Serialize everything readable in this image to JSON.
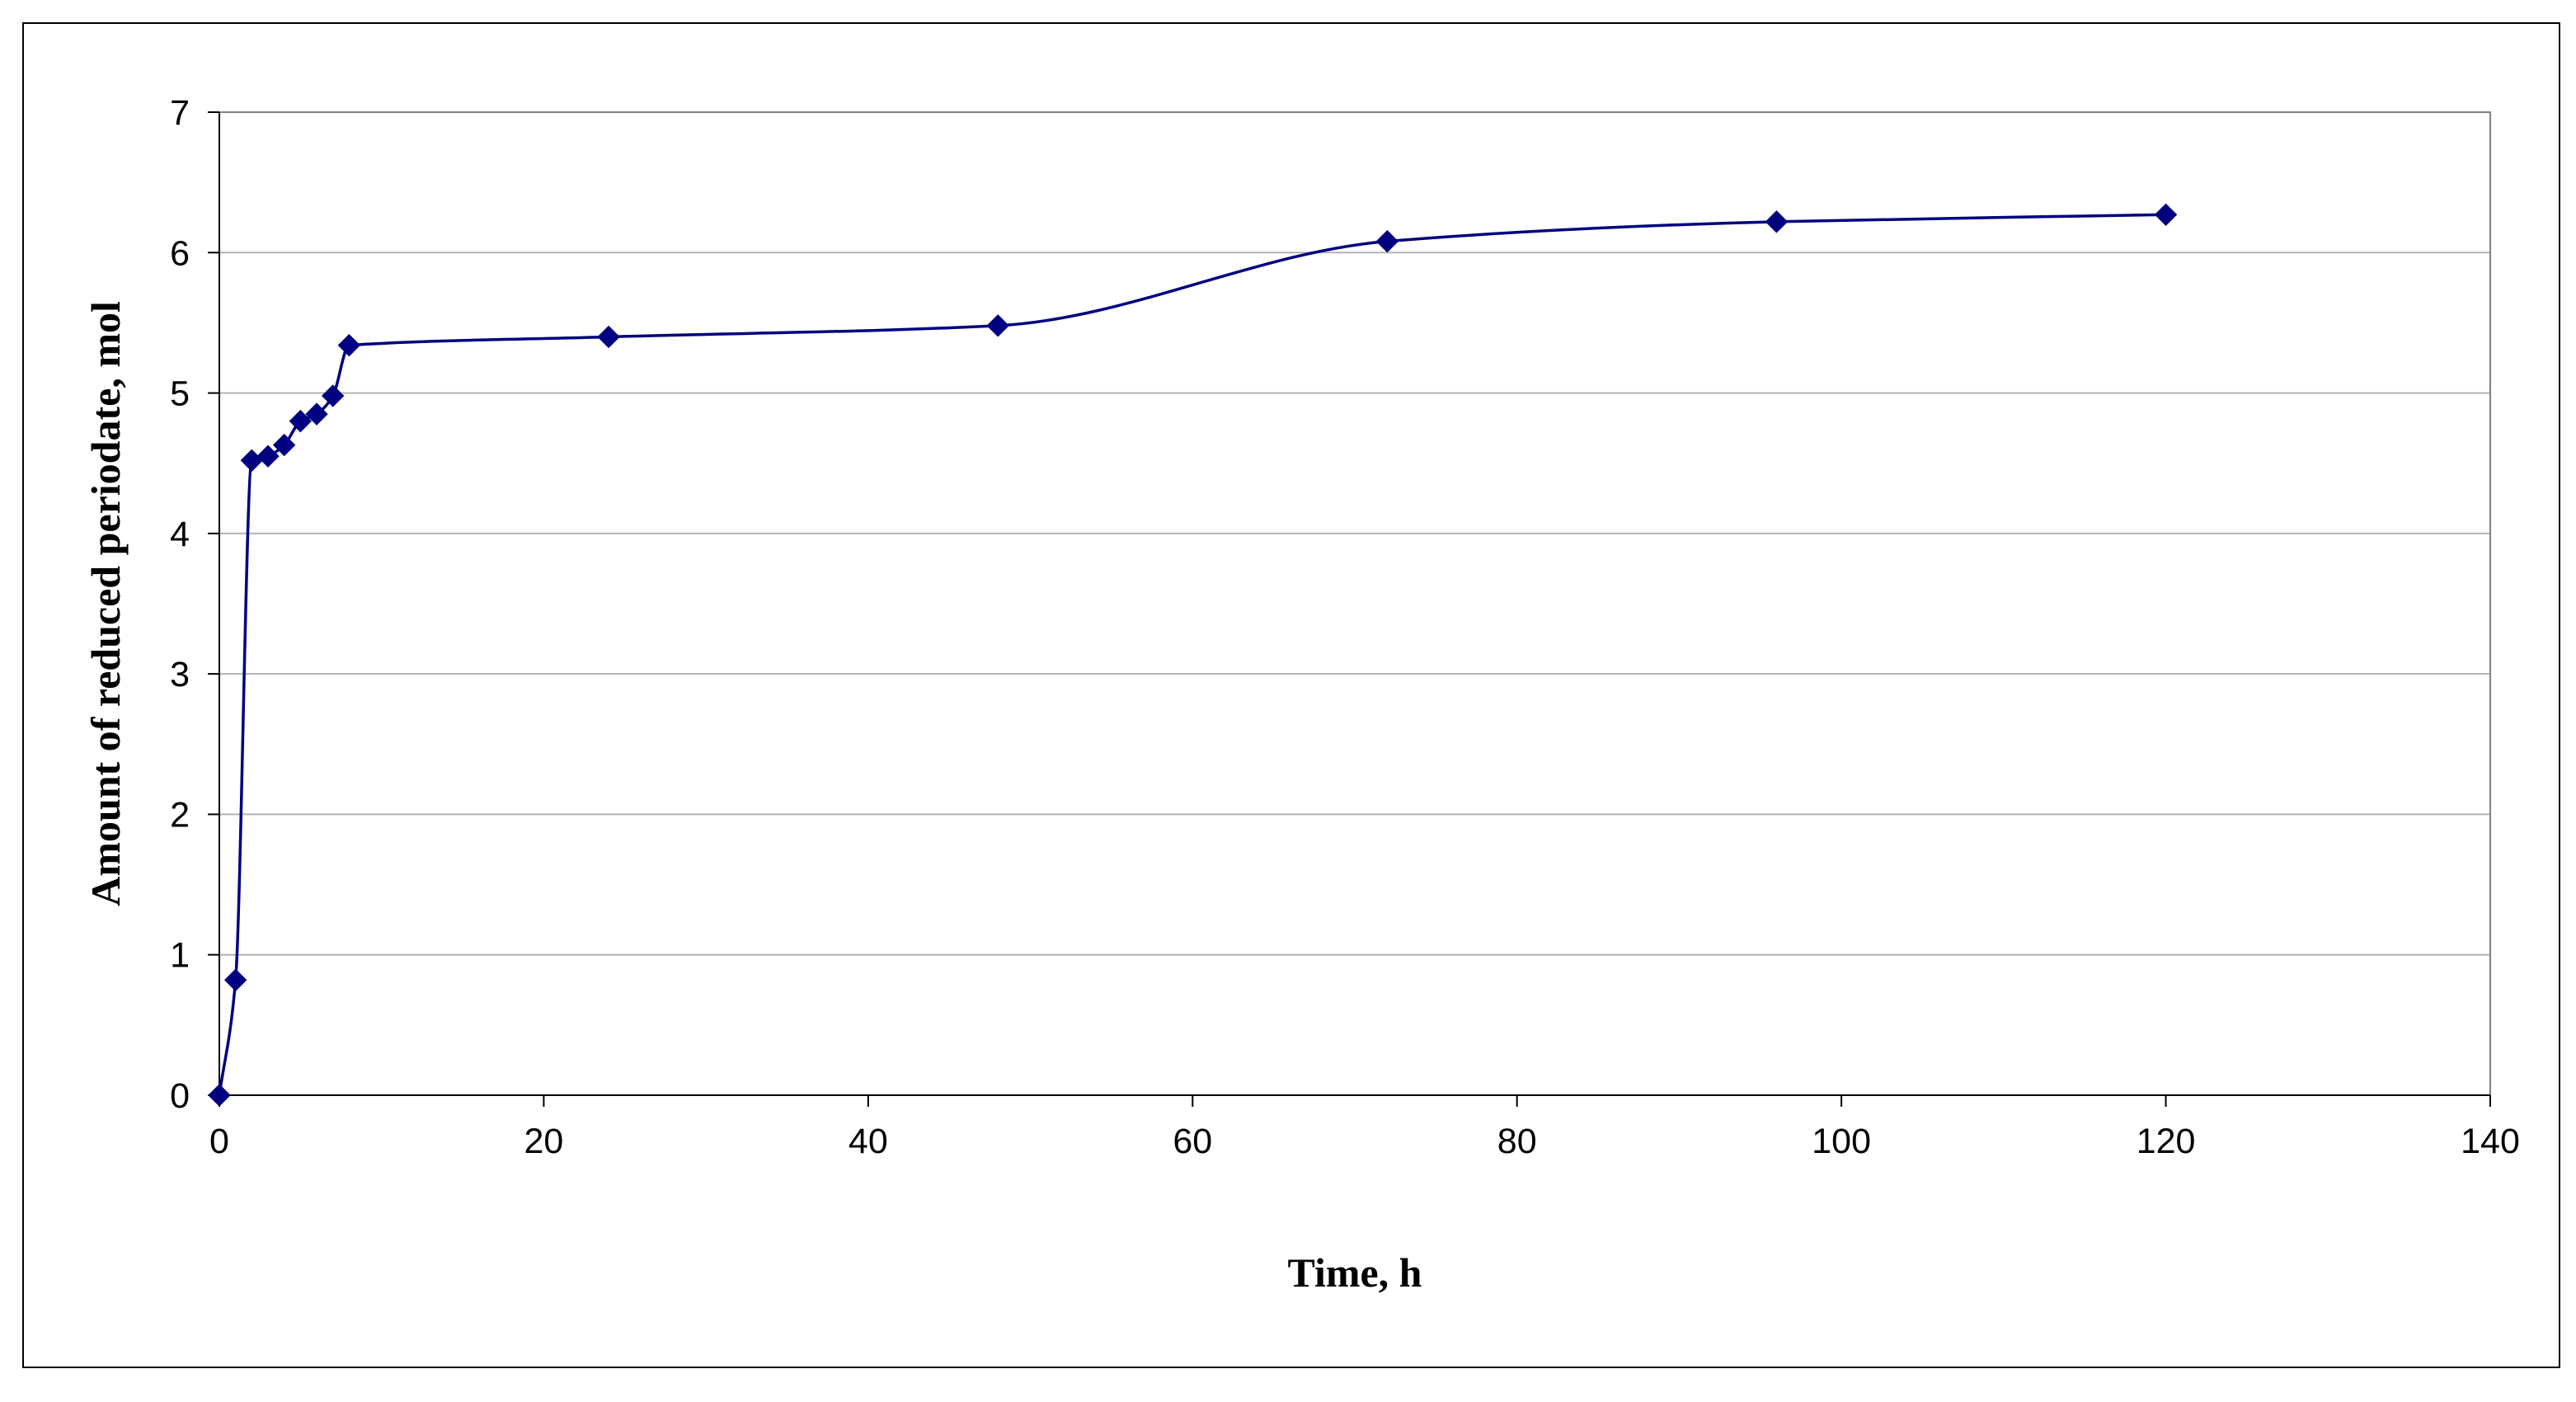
{
  "chart_data": {
    "type": "line",
    "title": "",
    "xlabel": "Time, h",
    "ylabel": "Amount of reduced periodate, mol",
    "xlim": [
      0,
      140
    ],
    "ylim": [
      0,
      7
    ],
    "x_ticks": [
      "0",
      "20",
      "40",
      "60",
      "80",
      "100",
      "120",
      "140"
    ],
    "y_ticks": [
      "0",
      "1",
      "2",
      "3",
      "4",
      "5",
      "6",
      "7"
    ],
    "grid": "horizontal",
    "legend": "none",
    "series": [
      {
        "marker": "diamond",
        "smooth": true,
        "x": [
          0,
          1,
          2,
          3,
          4,
          5,
          6,
          7,
          8,
          24,
          48,
          72,
          96,
          120
        ],
        "y": [
          0,
          0.82,
          4.52,
          4.55,
          4.63,
          4.8,
          4.85,
          4.98,
          5.34,
          5.4,
          5.48,
          6.08,
          6.22,
          6.27
        ]
      }
    ]
  },
  "colors": {
    "series": "#000080",
    "plot_border": "#808080",
    "gridline": "#b3b3b3",
    "axis": "#000000",
    "outer_border": "#000000"
  }
}
